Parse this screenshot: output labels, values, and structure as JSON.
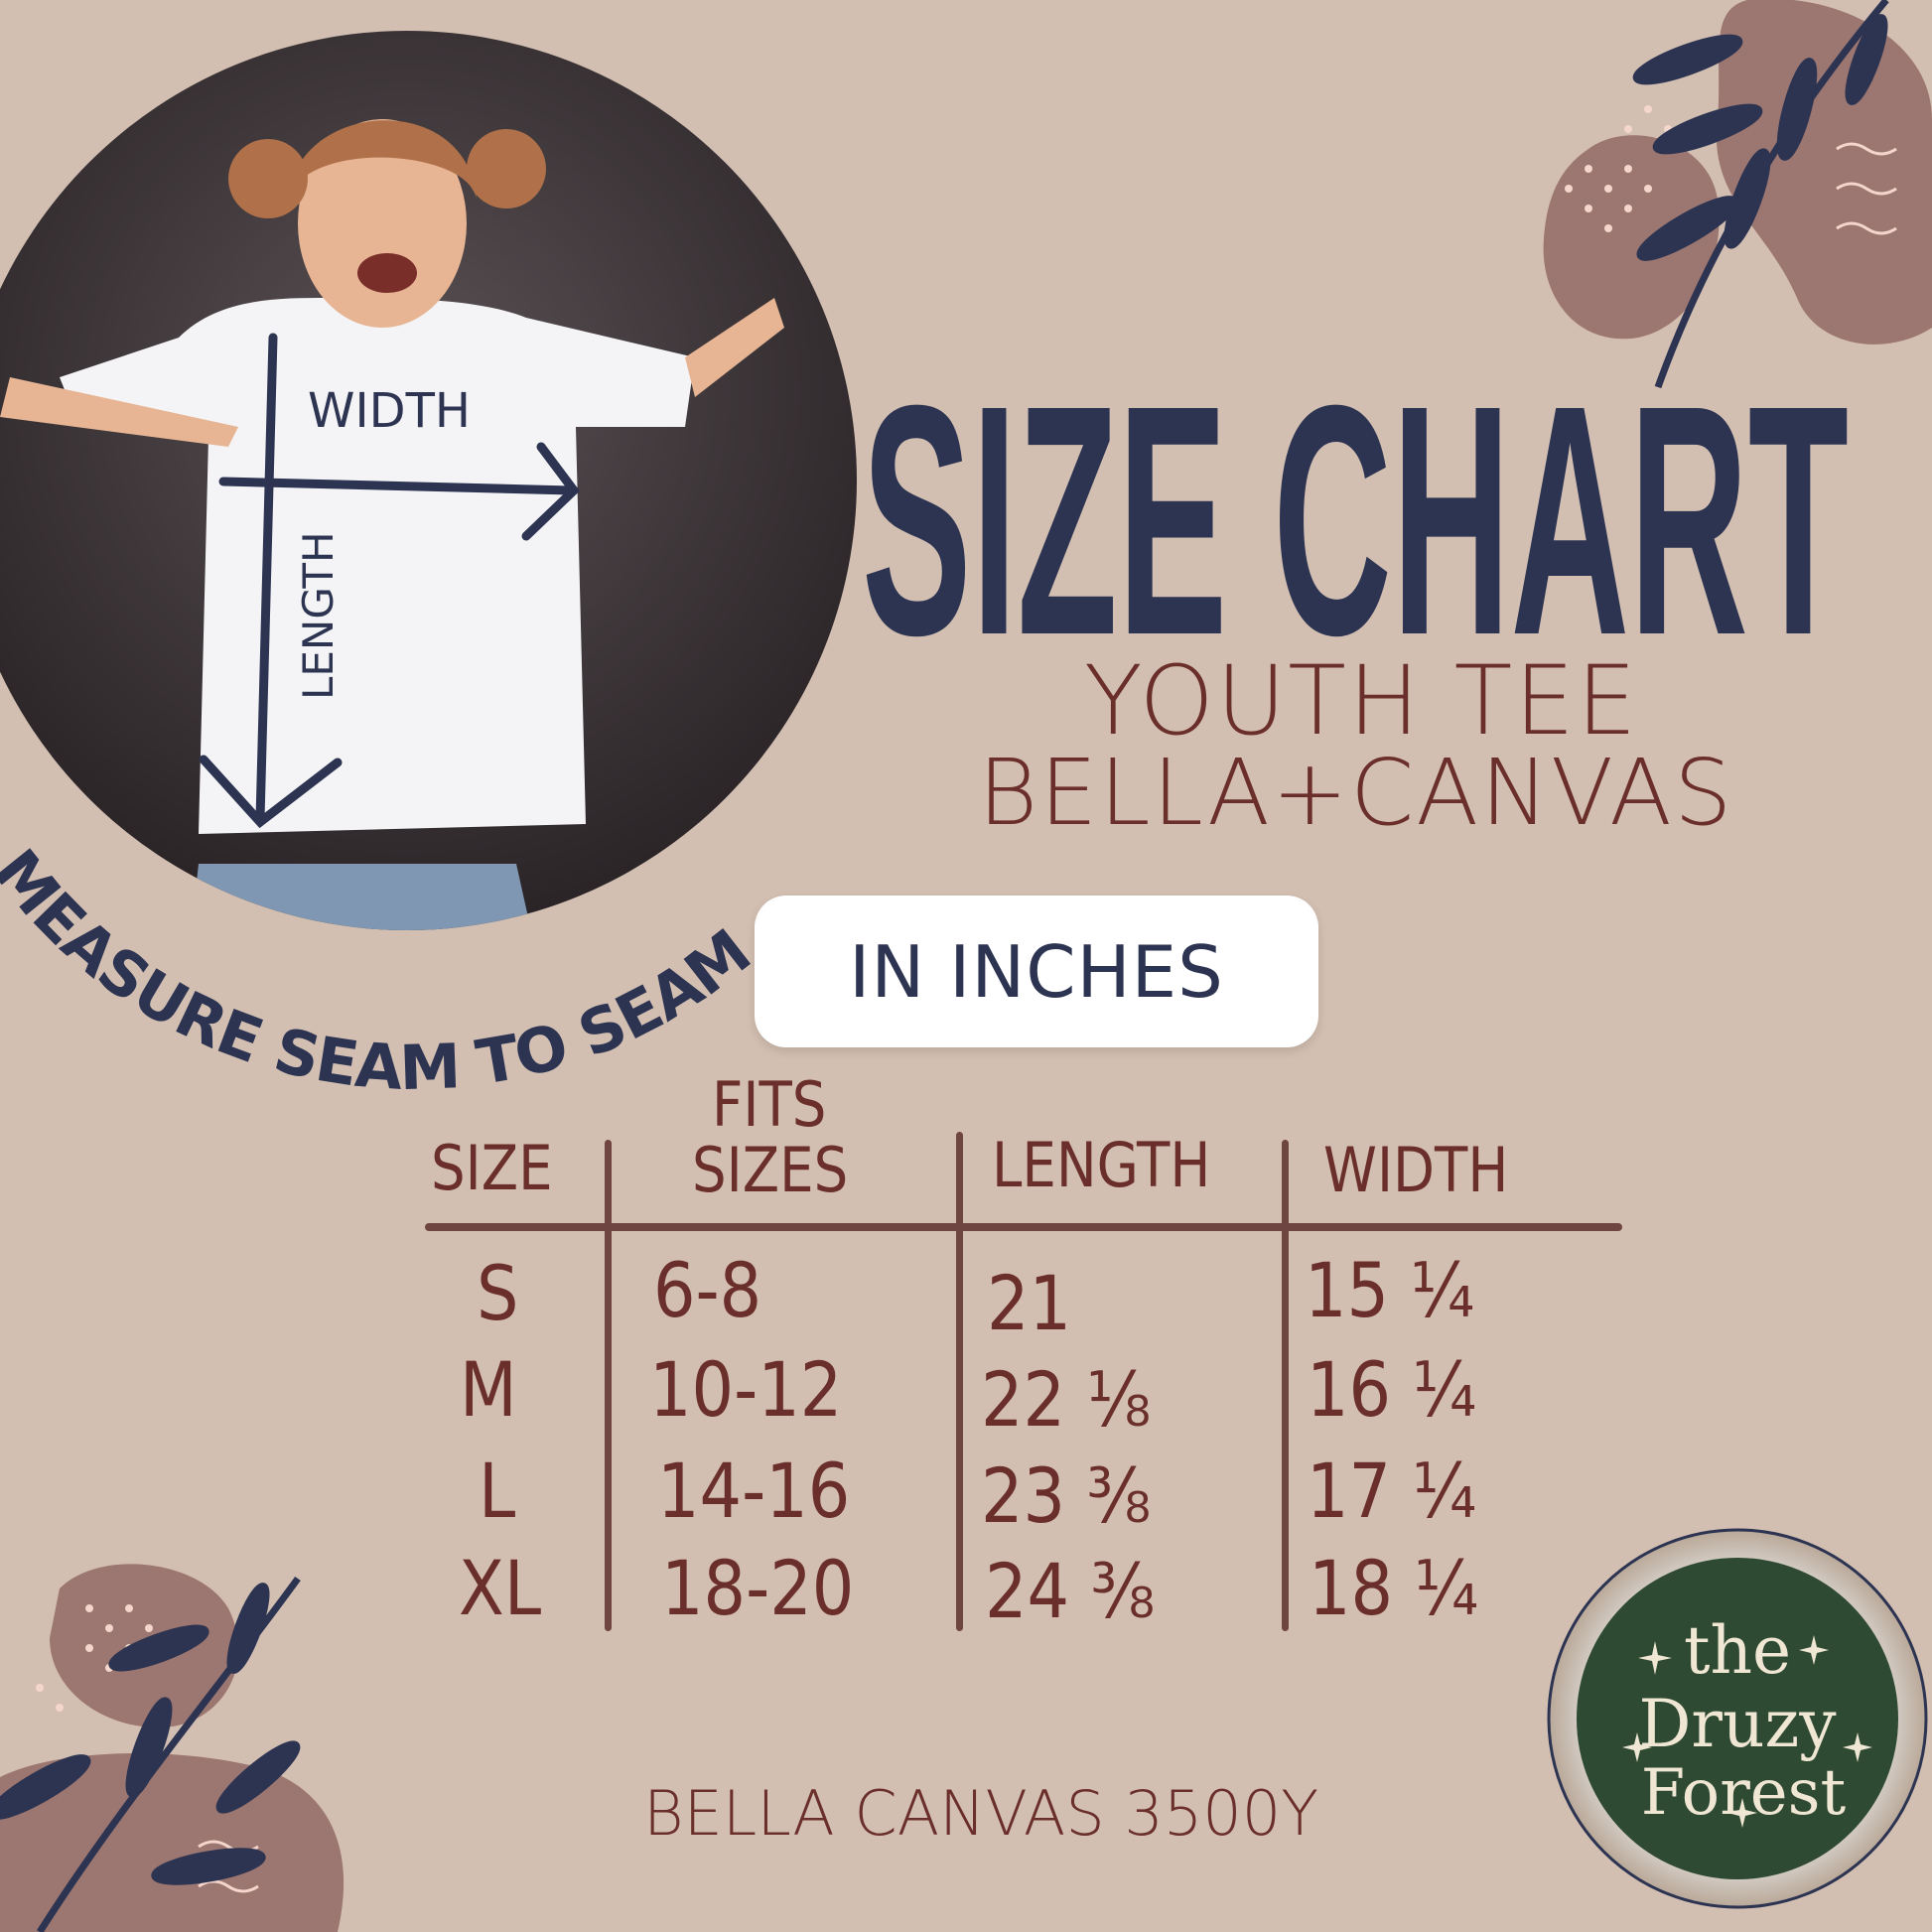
{
  "title": "SIZE CHART",
  "subtitle_line1": "YOUTH TEE",
  "subtitle_line2": "BELLA+CANVAS",
  "unit_badge": "IN INCHES",
  "photo_labels": {
    "width": "WIDTH",
    "length": "LENGTH"
  },
  "curved_caption": "MEASURE SEAM TO SEAM",
  "table": {
    "headers": {
      "size": "SIZE",
      "fits_line1": "FITS",
      "fits_line2": "SIZES",
      "length": "LENGTH",
      "width": "WIDTH"
    },
    "rows": [
      {
        "size": "S",
        "fits": "6-8",
        "length": "21",
        "width": "15 ¼"
      },
      {
        "size": "M",
        "fits": "10-12",
        "length": "22 ⅛",
        "width": "16 ¼"
      },
      {
        "size": "L",
        "fits": "14-16",
        "length": "23 ⅜",
        "width": "17 ¼"
      },
      {
        "size": "XL",
        "fits": "18-20",
        "length": "24 ⅜",
        "width": "18 ¼"
      }
    ]
  },
  "footer": "BELLA CANVAS 3500Y",
  "logo": {
    "line1": "the",
    "line2": "Druzy",
    "line3": "Forest"
  },
  "colors": {
    "background": "#d3bfb1",
    "navy": "#2c3452",
    "maroon": "#6b2f2b",
    "logo_green": "#2f4a32",
    "blob": "#9c7670"
  }
}
